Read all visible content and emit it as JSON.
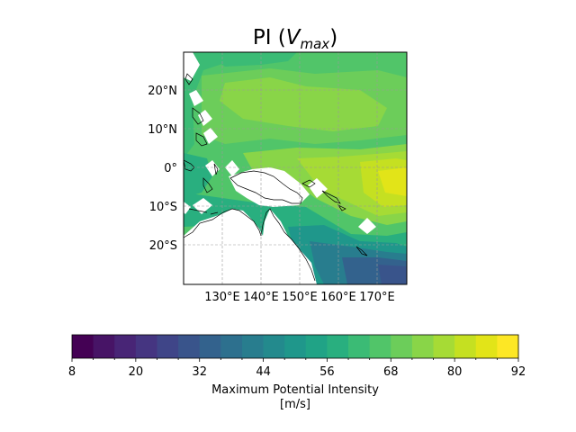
{
  "figure": {
    "title_main": "PI (",
    "title_var": "V",
    "title_sub": "max",
    "title_close": ")"
  },
  "map": {
    "lat_ticks": [
      "20°N",
      "10°N",
      "0°",
      "10°S",
      "20°S"
    ],
    "lon_ticks": [
      "130°E",
      "140°E",
      "150°E",
      "160°E",
      "170°E"
    ],
    "extent": {
      "lon": [
        122,
        179
      ],
      "lat": [
        -30,
        30
      ]
    },
    "gridlines": true
  },
  "colorbar": {
    "tick_labels": [
      "8",
      "20",
      "32",
      "44",
      "56",
      "68",
      "80",
      "92"
    ],
    "label_line1": "Maximum Potential Intensity",
    "label_line2": "[m/s]",
    "levels": [
      8,
      12,
      16,
      20,
      24,
      28,
      32,
      36,
      40,
      44,
      48,
      52,
      56,
      60,
      64,
      68,
      72,
      76,
      80,
      84,
      88,
      92
    ],
    "colors": [
      "#440154",
      "#471466",
      "#482576",
      "#453581",
      "#3f4588",
      "#39548b",
      "#33628d",
      "#2d708e",
      "#287d8e",
      "#238a8d",
      "#1f978b",
      "#20a386",
      "#29af7f",
      "#3bbb75",
      "#51c569",
      "#6ccd5a",
      "#89d548",
      "#a6db35",
      "#c5e021",
      "#e2e418",
      "#fde725"
    ]
  },
  "chart_data": {
    "type": "heatmap",
    "variable": "Maximum Potential Intensity",
    "units": "m/s",
    "value_range": [
      8,
      92
    ],
    "regions": [
      {
        "area": "western Pacific 10–25°N",
        "value": 72
      },
      {
        "area": "central equatorial Pacific 165–180°E",
        "value": 88
      },
      {
        "area": "Coral Sea 15–25°S",
        "value": 44
      },
      {
        "area": "far southeast corner near 25°S 175°E",
        "value": 32
      }
    ]
  }
}
